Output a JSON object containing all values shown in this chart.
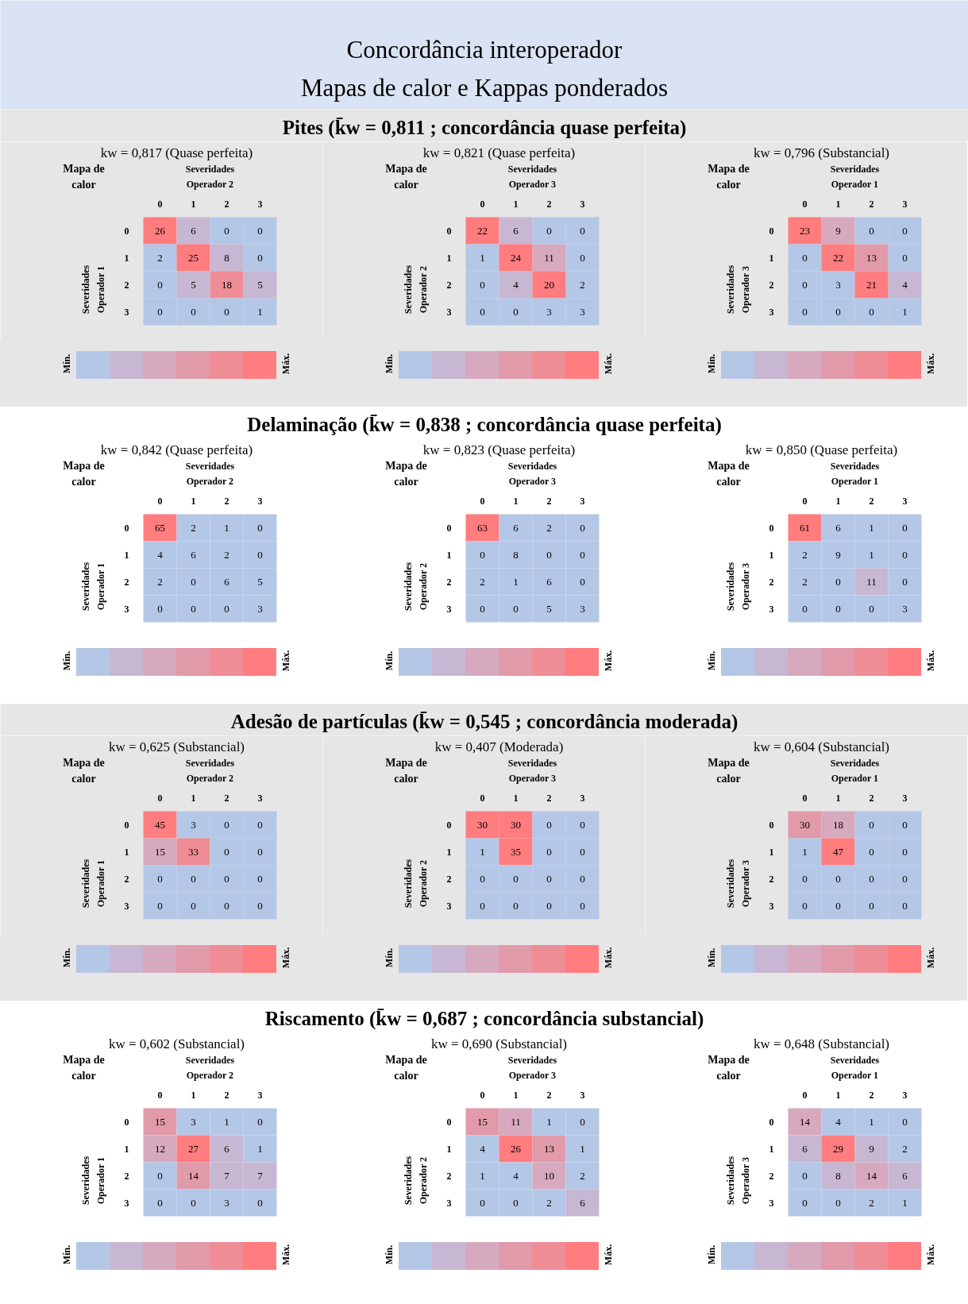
{
  "chart_data": [
    {
      "type": "other",
      "title": "Concordância interoperador",
      "subtitle": "Mapas de calor e Kappas ponderados"
    },
    {
      "type": "other",
      "title": "Pites (k̄w = 0,811 ; concordância quase perfeita)"
    },
    {
      "type": "heatmap",
      "title": "kw = 0,817 (Quase perfeita)",
      "xlabel": "Severidades Operador 2",
      "ylabel": "Severidades Operador 1",
      "annotations": [
        "Mapa de calor",
        "Mín.",
        "Máx."
      ],
      "categories": [
        "0",
        "1",
        "2",
        "3"
      ],
      "y_categories": [
        "0",
        "1",
        "2",
        "3"
      ],
      "cells": [
        [
          26,
          6,
          0,
          0
        ],
        [
          2,
          25,
          8,
          0
        ],
        [
          0,
          5,
          18,
          5
        ],
        [
          0,
          0,
          0,
          1
        ]
      ],
      "data_labels": true
    },
    {
      "type": "heatmap",
      "title": "kw = 0,821 (Quase perfeita)",
      "xlabel": "Severidades Operador 3",
      "ylabel": "Severidades Operador 2",
      "annotations": [
        "Mapa de calor",
        "Mín.",
        "Máx."
      ],
      "categories": [
        "0",
        "1",
        "2",
        "3"
      ],
      "y_categories": [
        "0",
        "1",
        "2",
        "3"
      ],
      "cells": [
        [
          22,
          6,
          0,
          0
        ],
        [
          1,
          24,
          11,
          0
        ],
        [
          0,
          4,
          20,
          2
        ],
        [
          0,
          0,
          3,
          3
        ]
      ],
      "data_labels": true
    },
    {
      "type": "heatmap",
      "title": "kw = 0,796 (Substancial)",
      "xlabel": "Severidades Operador 1",
      "ylabel": "Severidades Operador 3",
      "annotations": [
        "Mapa de calor",
        "Mín.",
        "Máx."
      ],
      "categories": [
        "0",
        "1",
        "2",
        "3"
      ],
      "y_categories": [
        "0",
        "1",
        "2",
        "3"
      ],
      "cells": [
        [
          23,
          9,
          0,
          0
        ],
        [
          0,
          22,
          13,
          0
        ],
        [
          0,
          3,
          21,
          4
        ],
        [
          0,
          0,
          0,
          1
        ]
      ],
      "data_labels": true
    },
    {
      "type": "other",
      "title": "Delaminação (k̄w = 0,838 ; concordância quase perfeita)"
    },
    {
      "type": "heatmap",
      "title": "kw = 0,842 (Quase perfeita)",
      "xlabel": "Severidades Operador 2",
      "ylabel": "Severidades Operador 1",
      "annotations": [
        "Mapa de calor",
        "Mín.",
        "Máx."
      ],
      "categories": [
        "0",
        "1",
        "2",
        "3"
      ],
      "y_categories": [
        "0",
        "1",
        "2",
        "3"
      ],
      "cells": [
        [
          65,
          2,
          1,
          0
        ],
        [
          4,
          6,
          2,
          0
        ],
        [
          2,
          0,
          6,
          5
        ],
        [
          0,
          0,
          0,
          3
        ]
      ],
      "data_labels": true
    },
    {
      "type": "heatmap",
      "title": "kw = 0,823 (Quase perfeita)",
      "xlabel": "Severidades Operador 3",
      "ylabel": "Severidades Operador 2",
      "annotations": [
        "Mapa de calor",
        "Mín.",
        "Máx."
      ],
      "categories": [
        "0",
        "1",
        "2",
        "3"
      ],
      "y_categories": [
        "0",
        "1",
        "2",
        "3"
      ],
      "cells": [
        [
          63,
          6,
          2,
          0
        ],
        [
          0,
          8,
          0,
          0
        ],
        [
          2,
          1,
          6,
          0
        ],
        [
          0,
          0,
          5,
          3
        ]
      ],
      "data_labels": true
    },
    {
      "type": "heatmap",
      "title": "kw = 0,850 (Quase perfeita)",
      "xlabel": "Severidades Operador 1",
      "ylabel": "Severidades Operador 3",
      "annotations": [
        "Mapa de calor",
        "Mín.",
        "Máx."
      ],
      "categories": [
        "0",
        "1",
        "2",
        "3"
      ],
      "y_categories": [
        "0",
        "1",
        "2",
        "3"
      ],
      "cells": [
        [
          61,
          6,
          1,
          0
        ],
        [
          2,
          9,
          1,
          0
        ],
        [
          2,
          0,
          11,
          0
        ],
        [
          0,
          0,
          0,
          3
        ]
      ],
      "data_labels": true
    },
    {
      "type": "other",
      "title": "Adesão de partículas (k̄w = 0,545 ; concordância moderada)"
    },
    {
      "type": "heatmap",
      "title": "kw = 0,625 (Substancial)",
      "xlabel": "Severidades Operador 2",
      "ylabel": "Severidades Operador 1",
      "annotations": [
        "Mapa de calor",
        "Mín.",
        "Máx."
      ],
      "categories": [
        "0",
        "1",
        "2",
        "3"
      ],
      "y_categories": [
        "0",
        "1",
        "2",
        "3"
      ],
      "cells": [
        [
          45,
          3,
          0,
          0
        ],
        [
          15,
          33,
          0,
          0
        ],
        [
          0,
          0,
          0,
          0
        ],
        [
          0,
          0,
          0,
          0
        ]
      ],
      "data_labels": true
    },
    {
      "type": "heatmap",
      "title": "kw = 0,407 (Moderada)",
      "xlabel": "Severidades Operador 3",
      "ylabel": "Severidades Operador 2",
      "annotations": [
        "Mapa de calor",
        "Mín.",
        "Máx."
      ],
      "categories": [
        "0",
        "1",
        "2",
        "3"
      ],
      "y_categories": [
        "0",
        "1",
        "2",
        "3"
      ],
      "cells": [
        [
          30,
          30,
          0,
          0
        ],
        [
          1,
          35,
          0,
          0
        ],
        [
          0,
          0,
          0,
          0
        ],
        [
          0,
          0,
          0,
          0
        ]
      ],
      "data_labels": true
    },
    {
      "type": "heatmap",
      "title": "kw = 0,604 (Substancial)",
      "xlabel": "Severidades Operador 1",
      "ylabel": "Severidades Operador 3",
      "annotations": [
        "Mapa de calor",
        "Mín.",
        "Máx."
      ],
      "categories": [
        "0",
        "1",
        "2",
        "3"
      ],
      "y_categories": [
        "0",
        "1",
        "2",
        "3"
      ],
      "cells": [
        [
          30,
          18,
          0,
          0
        ],
        [
          1,
          47,
          0,
          0
        ],
        [
          0,
          0,
          0,
          0
        ],
        [
          0,
          0,
          0,
          0
        ]
      ],
      "data_labels": true
    },
    {
      "type": "other",
      "title": "Riscamento (k̄w = 0,687 ; concordância substancial)"
    },
    {
      "type": "heatmap",
      "title": "kw = 0,602 (Substancial)",
      "xlabel": "Severidades Operador 2",
      "ylabel": "Severidades Operador 1",
      "annotations": [
        "Mapa de calor",
        "Mín.",
        "Máx."
      ],
      "categories": [
        "0",
        "1",
        "2",
        "3"
      ],
      "y_categories": [
        "0",
        "1",
        "2",
        "3"
      ],
      "cells": [
        [
          15,
          3,
          1,
          0
        ],
        [
          12,
          27,
          6,
          1
        ],
        [
          0,
          14,
          7,
          7
        ],
        [
          0,
          0,
          3,
          0
        ]
      ],
      "data_labels": true
    },
    {
      "type": "heatmap",
      "title": "kw = 0,690 (Substancial)",
      "xlabel": "Severidades Operador 3",
      "ylabel": "Severidades Operador 2",
      "annotations": [
        "Mapa de calor",
        "Mín.",
        "Máx."
      ],
      "categories": [
        "0",
        "1",
        "2",
        "3"
      ],
      "y_categories": [
        "0",
        "1",
        "2",
        "3"
      ],
      "cells": [
        [
          15,
          11,
          1,
          0
        ],
        [
          4,
          26,
          13,
          1
        ],
        [
          1,
          4,
          10,
          2
        ],
        [
          0,
          0,
          2,
          6
        ]
      ],
      "data_labels": true
    },
    {
      "type": "heatmap",
      "title": "kw = 0,648 (Substancial)",
      "xlabel": "Severidades Operador 1",
      "ylabel": "Severidades Operador 3",
      "annotations": [
        "Mapa de calor",
        "Mín.",
        "Máx."
      ],
      "categories": [
        "0",
        "1",
        "2",
        "3"
      ],
      "y_categories": [
        "0",
        "1",
        "2",
        "3"
      ],
      "cells": [
        [
          14,
          4,
          1,
          0
        ],
        [
          6,
          29,
          9,
          2
        ],
        [
          0,
          8,
          14,
          6
        ],
        [
          0,
          0,
          2,
          1
        ]
      ],
      "data_labels": true
    }
  ]
}
